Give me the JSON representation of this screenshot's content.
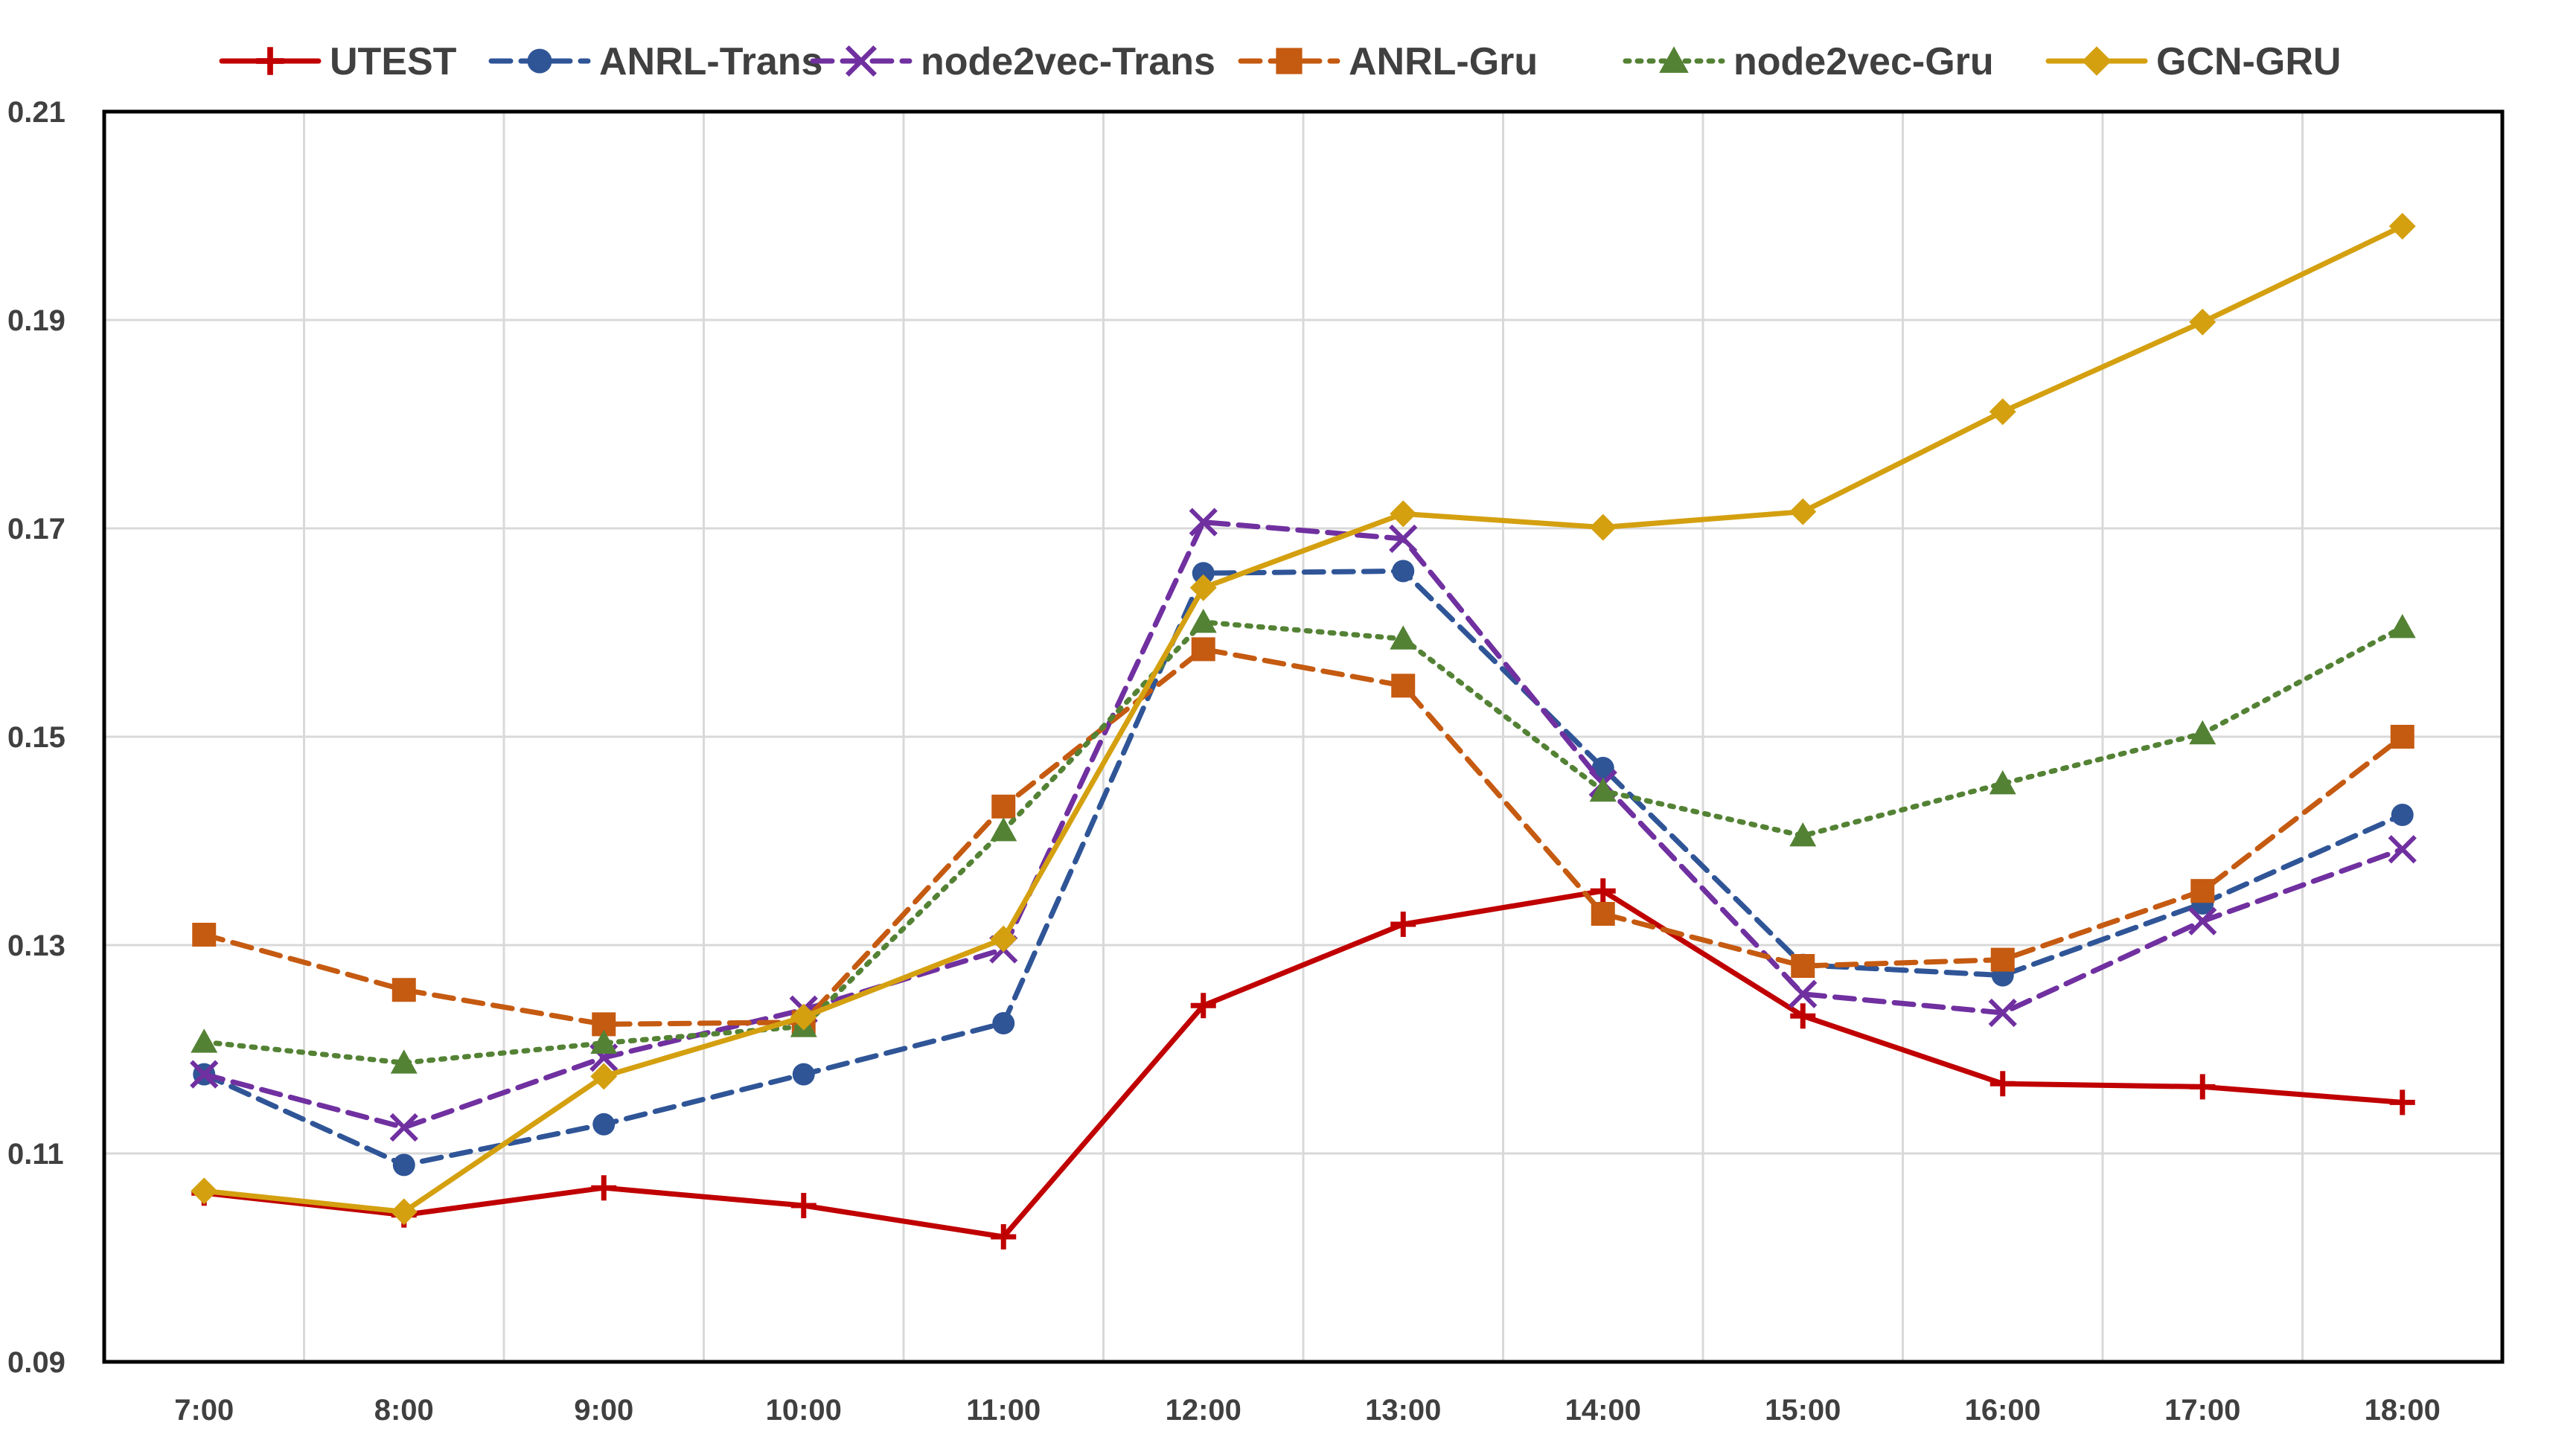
{
  "chart_data": {
    "type": "line",
    "title": "",
    "xlabel": "",
    "ylabel": "",
    "categories": [
      "7:00",
      "8:00",
      "9:00",
      "10:00",
      "11:00",
      "12:00",
      "13:00",
      "14:00",
      "15:00",
      "16:00",
      "17:00",
      "18:00"
    ],
    "ylim": [
      0.09,
      0.21
    ],
    "yticks": [
      "0.09",
      "0.11",
      "0.13",
      "0.15",
      "0.17",
      "0.19",
      "0.21"
    ],
    "grid": true,
    "legend_position": "top",
    "series": [
      {
        "name": "UTEST",
        "color": "#C00000",
        "line": "solid",
        "marker": "plus",
        "values": [
          0.1062,
          0.1041,
          0.1067,
          0.105,
          0.102,
          0.1242,
          0.132,
          0.1352,
          0.1232,
          0.1167,
          0.1164,
          0.1149
        ]
      },
      {
        "name": "ANRL-Trans",
        "color": "#2F5597",
        "line": "dashed",
        "marker": "circle",
        "values": [
          0.1176,
          0.1089,
          0.1128,
          0.1176,
          0.1225,
          0.1657,
          0.1659,
          0.147,
          0.1281,
          0.1271,
          0.134,
          0.1425
        ]
      },
      {
        "name": "node2vec-Trans",
        "color": "#7030A0",
        "line": "dashed",
        "marker": "x",
        "values": [
          0.1176,
          0.1125,
          0.1192,
          0.1238,
          0.1296,
          0.1706,
          0.169,
          0.1455,
          0.1253,
          0.1235,
          0.1323,
          0.1392
        ]
      },
      {
        "name": "ANRL-Gru",
        "color": "#C55A11",
        "line": "dashed",
        "marker": "square",
        "values": [
          0.131,
          0.1257,
          0.1224,
          0.1226,
          0.1433,
          0.1584,
          0.1549,
          0.133,
          0.128,
          0.1286,
          0.1352,
          0.15
        ]
      },
      {
        "name": "node2vec-Gru",
        "color": "#548235",
        "line": "dotted",
        "marker": "triangle",
        "values": [
          0.1207,
          0.1187,
          0.1206,
          0.1222,
          0.141,
          0.161,
          0.1594,
          0.1448,
          0.1405,
          0.1455,
          0.1503,
          0.1605
        ]
      },
      {
        "name": "GCN-GRU",
        "color": "#D4A010",
        "line": "solid",
        "marker": "diamond",
        "values": [
          0.1064,
          0.1044,
          0.1174,
          0.1231,
          0.1306,
          0.1643,
          0.1714,
          0.1701,
          0.1716,
          0.1812,
          0.1898,
          0.199
        ]
      }
    ]
  }
}
